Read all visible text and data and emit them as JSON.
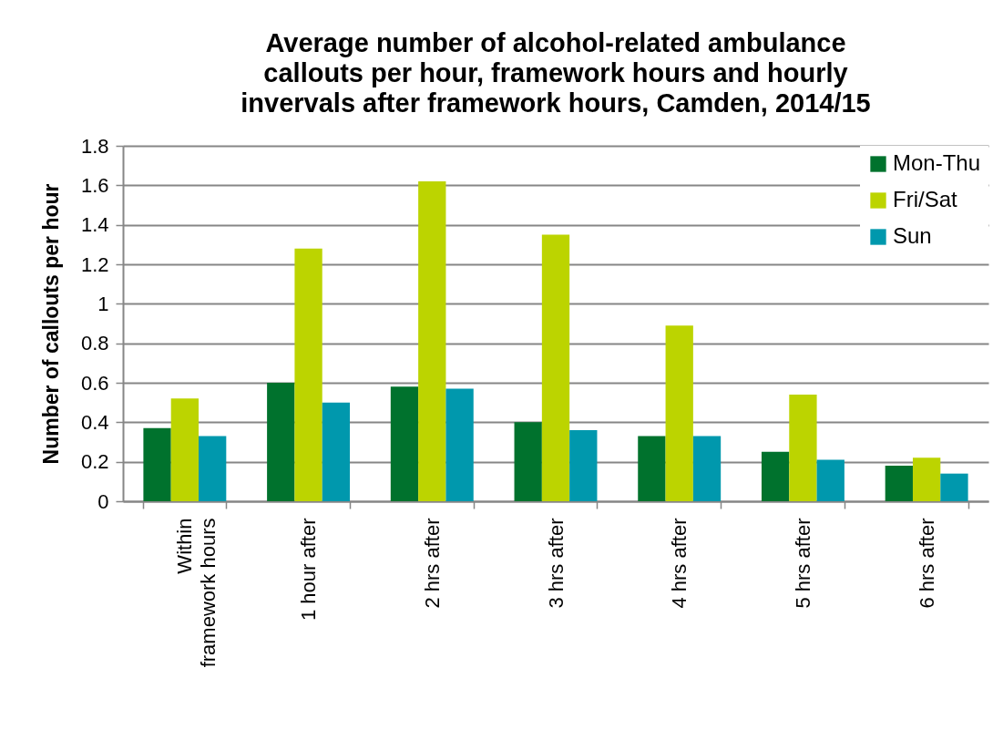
{
  "chart_data": {
    "type": "bar",
    "title": "Average number of alcohol-related ambulance\ncallouts per hour, framework hours and hourly\ninvervals after framework hours, Camden, 2014/15",
    "ylabel": "Number of callouts per hour",
    "categories": [
      "Within\nframework hours",
      "1 hour after",
      "2 hrs after",
      "3 hrs after",
      "4 hrs after",
      "5 hrs after",
      "6 hrs after"
    ],
    "series": [
      {
        "name": "Mon-Thu",
        "color": "#00722d",
        "values": [
          0.37,
          0.6,
          0.58,
          0.4,
          0.33,
          0.25,
          0.18
        ]
      },
      {
        "name": "Fri/Sat",
        "color": "#bcd400",
        "values": [
          0.52,
          1.28,
          1.62,
          1.35,
          0.89,
          0.54,
          0.22
        ]
      },
      {
        "name": "Sun",
        "color": "#0098ad",
        "values": [
          0.33,
          0.5,
          0.57,
          0.36,
          0.33,
          0.21,
          0.14
        ]
      }
    ],
    "ylim": [
      0,
      1.8
    ],
    "yticks": [
      0,
      0.2,
      0.4,
      0.6,
      0.8,
      1,
      1.2,
      1.4,
      1.6,
      1.8
    ],
    "grid": "y",
    "legend": "top right"
  }
}
